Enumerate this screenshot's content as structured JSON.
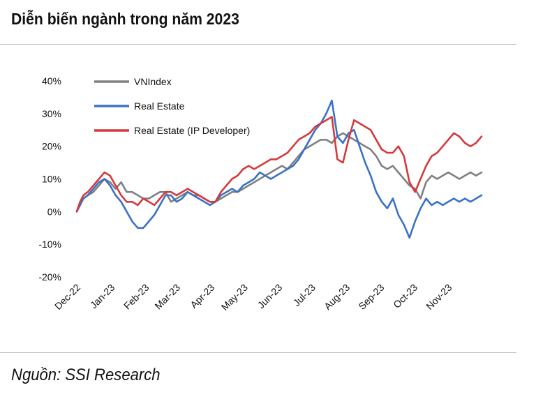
{
  "header": {
    "title": "Diễn biến ngành trong năm 2023"
  },
  "footer": {
    "source": "Nguồn: SSI Research"
  },
  "chart_data": {
    "type": "line",
    "title": "Diễn biến ngành trong năm 2023",
    "xlabel": "",
    "ylabel": "",
    "ylim": [
      -20,
      40
    ],
    "y_ticks": [
      "40%",
      "30%",
      "20%",
      "10%",
      "0%",
      "-10%",
      "-20%"
    ],
    "y_tick_values": [
      40,
      30,
      20,
      10,
      0,
      -10,
      -20
    ],
    "x_tick_labels": [
      "Dec-22",
      "Jan-23",
      "Feb-23",
      "Mar-23",
      "Apr-23",
      "May-23",
      "Jun-23",
      "Jul-23",
      "Aug-23",
      "Sep-23",
      "Oct-23",
      "Nov-23"
    ],
    "x_tick_days": [
      0,
      31,
      62,
      90,
      121,
      151,
      182,
      212,
      243,
      274,
      304,
      335
    ],
    "legend_position": "top-left",
    "series": [
      {
        "name": "VNIndex",
        "color": "#808080",
        "x": [
          0,
          3,
          6,
          10,
          15,
          20,
          25,
          30,
          35,
          40,
          45,
          50,
          55,
          60,
          65,
          70,
          75,
          80,
          85,
          90,
          95,
          100,
          105,
          110,
          115,
          120,
          125,
          130,
          135,
          140,
          145,
          150,
          155,
          160,
          165,
          170,
          175,
          180,
          185,
          190,
          195,
          200,
          205,
          210,
          215,
          220,
          225,
          230,
          235,
          240,
          245,
          250,
          255,
          260,
          265,
          270,
          275,
          280,
          285,
          290,
          295,
          300,
          305,
          310,
          315,
          320,
          325,
          330,
          335,
          340,
          345,
          350,
          355,
          360,
          365
        ],
        "values": [
          0,
          3,
          4,
          5,
          6,
          8,
          10,
          9,
          7,
          9,
          6,
          6,
          5,
          4,
          4,
          5,
          6,
          6,
          3,
          4,
          5,
          6,
          5,
          5,
          4,
          3,
          3,
          4,
          5,
          6,
          6,
          7,
          8,
          9,
          10,
          11,
          12,
          13,
          14,
          13,
          15,
          17,
          19,
          20,
          21,
          22,
          22,
          21,
          23,
          24,
          23,
          22,
          21,
          20,
          19,
          17,
          14,
          13,
          14,
          12,
          10,
          8,
          7,
          4,
          9,
          11,
          10,
          11,
          12,
          11,
          10,
          11,
          12,
          11,
          12
        ]
      },
      {
        "name": "Real Estate",
        "color": "#3a72c4",
        "x": [
          0,
          3,
          6,
          10,
          15,
          20,
          25,
          30,
          35,
          40,
          45,
          50,
          55,
          60,
          65,
          70,
          75,
          80,
          85,
          90,
          95,
          100,
          105,
          110,
          115,
          120,
          125,
          130,
          135,
          140,
          145,
          150,
          155,
          160,
          165,
          170,
          175,
          180,
          185,
          190,
          195,
          200,
          205,
          210,
          215,
          220,
          225,
          230,
          235,
          240,
          245,
          250,
          255,
          260,
          265,
          270,
          275,
          280,
          285,
          290,
          295,
          300,
          305,
          310,
          315,
          320,
          325,
          330,
          335,
          340,
          345,
          350,
          355,
          360,
          365
        ],
        "values": [
          0,
          2,
          4,
          5,
          7,
          9,
          10,
          8,
          5,
          3,
          0,
          -3,
          -5,
          -5,
          -3,
          -1,
          2,
          5,
          5,
          3,
          4,
          6,
          5,
          4,
          3,
          2,
          3,
          5,
          6,
          7,
          6,
          8,
          9,
          10,
          12,
          11,
          10,
          11,
          12,
          13,
          14,
          16,
          19,
          22,
          25,
          27,
          30,
          34,
          23,
          21,
          24,
          25,
          20,
          15,
          11,
          6,
          3,
          1,
          4,
          -1,
          -4,
          -8,
          -3,
          1,
          4,
          2,
          3,
          2,
          3,
          4,
          3,
          4,
          3,
          4,
          5
        ]
      },
      {
        "name": "Real Estate (IP Developer)",
        "color": "#d43a3d",
        "x": [
          0,
          3,
          6,
          10,
          15,
          20,
          25,
          30,
          35,
          40,
          45,
          50,
          55,
          60,
          65,
          70,
          75,
          80,
          85,
          90,
          95,
          100,
          105,
          110,
          115,
          120,
          125,
          130,
          135,
          140,
          145,
          150,
          155,
          160,
          165,
          170,
          175,
          180,
          185,
          190,
          195,
          200,
          205,
          210,
          215,
          220,
          225,
          230,
          235,
          240,
          245,
          250,
          255,
          260,
          265,
          270,
          275,
          280,
          285,
          290,
          295,
          300,
          305,
          310,
          315,
          320,
          325,
          330,
          335,
          340,
          345,
          350,
          355,
          360,
          365
        ],
        "values": [
          0,
          3,
          5,
          6,
          8,
          10,
          12,
          11,
          8,
          5,
          3,
          3,
          2,
          4,
          3,
          2,
          4,
          6,
          6,
          5,
          6,
          7,
          6,
          5,
          4,
          3,
          3,
          6,
          8,
          10,
          11,
          13,
          14,
          13,
          14,
          15,
          16,
          16,
          17,
          18,
          20,
          22,
          23,
          24,
          26,
          27,
          28,
          29,
          16,
          15,
          22,
          28,
          27,
          26,
          25,
          22,
          19,
          18,
          18,
          20,
          17,
          9,
          6,
          10,
          14,
          17,
          18,
          20,
          22,
          24,
          23,
          21,
          20,
          21,
          23
        ]
      }
    ]
  }
}
